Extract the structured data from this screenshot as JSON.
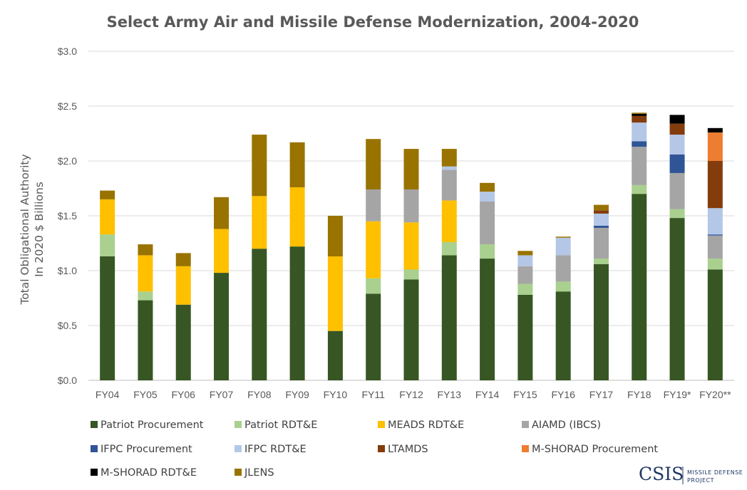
{
  "chart_data": {
    "type": "bar",
    "stacked": true,
    "title": "Select Army Air and Missile Defense Modernization, 2004-2020",
    "ylabel_line1": "Total Obligational Authority",
    "ylabel_line2": "In 2020 $ Billions",
    "xlabel": "",
    "ylim": [
      0,
      3.0
    ],
    "y_ticks": [
      0,
      0.5,
      1.0,
      1.5,
      2.0,
      2.5,
      3.0
    ],
    "y_tick_labels": [
      "$0.0",
      "$0.5",
      "$1.0",
      "$1.5",
      "$2.0",
      "$2.5",
      "$3.0"
    ],
    "grid": "horizontal",
    "legend_position": "bottom",
    "categories": [
      "FY04",
      "FY05",
      "FY06",
      "FY07",
      "FY08",
      "FY09",
      "FY10",
      "FY11",
      "FY12",
      "FY13",
      "FY14",
      "FY15",
      "FY16",
      "FY17",
      "FY18",
      "FY19*",
      "FY20**"
    ],
    "series": [
      {
        "name": "Patriot Procurement",
        "color": "#375623",
        "values": [
          1.13,
          0.73,
          0.69,
          0.98,
          1.2,
          1.22,
          0.45,
          0.79,
          0.92,
          1.14,
          1.11,
          0.78,
          0.81,
          1.06,
          1.7,
          1.48,
          1.01
        ]
      },
      {
        "name": "Patriot RDT&E",
        "color": "#a9d08e",
        "values": [
          0.2,
          0.08,
          0.0,
          0.0,
          0.0,
          0.0,
          0.0,
          0.14,
          0.09,
          0.12,
          0.13,
          0.1,
          0.09,
          0.05,
          0.08,
          0.08,
          0.1
        ]
      },
      {
        "name": "MEADS RDT&E",
        "color": "#ffc000",
        "values": [
          0.32,
          0.33,
          0.35,
          0.4,
          0.48,
          0.54,
          0.68,
          0.52,
          0.43,
          0.38,
          0.0,
          0.0,
          0.0,
          0.0,
          0.0,
          0.0,
          0.0
        ]
      },
      {
        "name": "AIAMD (IBCS)",
        "color": "#a5a5a5",
        "values": [
          0.0,
          0.0,
          0.0,
          0.0,
          0.0,
          0.0,
          0.0,
          0.29,
          0.3,
          0.28,
          0.39,
          0.16,
          0.24,
          0.28,
          0.35,
          0.33,
          0.21
        ]
      },
      {
        "name": "IFPC Procurement",
        "color": "#2f5597",
        "values": [
          0.0,
          0.0,
          0.0,
          0.0,
          0.0,
          0.0,
          0.0,
          0.0,
          0.0,
          0.0,
          0.0,
          0.0,
          0.0,
          0.02,
          0.05,
          0.17,
          0.01
        ]
      },
      {
        "name": "IFPC RDT&E",
        "color": "#b4c7e7",
        "values": [
          0.0,
          0.0,
          0.0,
          0.0,
          0.0,
          0.0,
          0.0,
          0.0,
          0.0,
          0.03,
          0.09,
          0.1,
          0.16,
          0.11,
          0.17,
          0.18,
          0.24
        ]
      },
      {
        "name": "LTAMDS",
        "color": "#843c0c",
        "values": [
          0.0,
          0.0,
          0.0,
          0.0,
          0.0,
          0.0,
          0.0,
          0.0,
          0.0,
          0.0,
          0.0,
          0.0,
          0.0,
          0.03,
          0.06,
          0.1,
          0.43
        ]
      },
      {
        "name": "M-SHORAD Procurement",
        "color": "#ed7d31",
        "values": [
          0.0,
          0.0,
          0.0,
          0.0,
          0.0,
          0.0,
          0.0,
          0.0,
          0.0,
          0.0,
          0.0,
          0.0,
          0.0,
          0.0,
          0.0,
          0.0,
          0.26
        ]
      },
      {
        "name": "M-SHORAD RDT&E",
        "color": "#000000",
        "values": [
          0.0,
          0.0,
          0.0,
          0.0,
          0.0,
          0.0,
          0.0,
          0.0,
          0.0,
          0.0,
          0.0,
          0.0,
          0.0,
          0.0,
          0.02,
          0.08,
          0.04
        ]
      },
      {
        "name": "JLENS",
        "color": "#997300",
        "values": [
          0.08,
          0.1,
          0.12,
          0.29,
          0.56,
          0.41,
          0.37,
          0.46,
          0.37,
          0.16,
          0.08,
          0.04,
          0.01,
          0.05,
          0.01,
          0.0,
          0.0
        ]
      }
    ]
  },
  "logo": {
    "main": "CSIS",
    "sub_line1": "MISSILE DEFENSE",
    "sub_line2": "PROJECT"
  }
}
